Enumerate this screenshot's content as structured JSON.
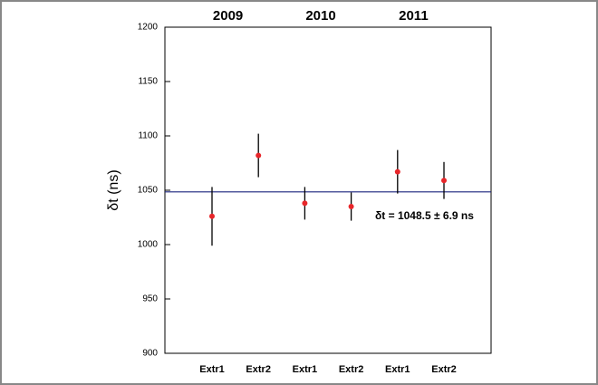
{
  "chart_data": {
    "type": "errorbar",
    "group_labels": [
      "2009",
      "2010",
      "2011"
    ],
    "categories": [
      "Extr1",
      "Extr2",
      "Extr1",
      "Extr2",
      "Extr1",
      "Extr2"
    ],
    "series": [
      {
        "color": "#e8262a",
        "error_color": "#000000",
        "values": [
          1026,
          1082,
          1038,
          1035,
          1067,
          1059
        ],
        "errors": [
          27,
          20,
          15,
          13,
          20,
          17
        ]
      }
    ],
    "ylabel": "δt (ns)",
    "ylim": [
      900,
      1200
    ],
    "yticks": [
      900,
      950,
      1000,
      1050,
      1100,
      1150,
      1200
    ],
    "reference_line": 1048.5,
    "reference_color": "#1a237e",
    "annotation": "δt = 1048.5 ± 6.9 ns",
    "annotation_color": "#2233cc"
  }
}
